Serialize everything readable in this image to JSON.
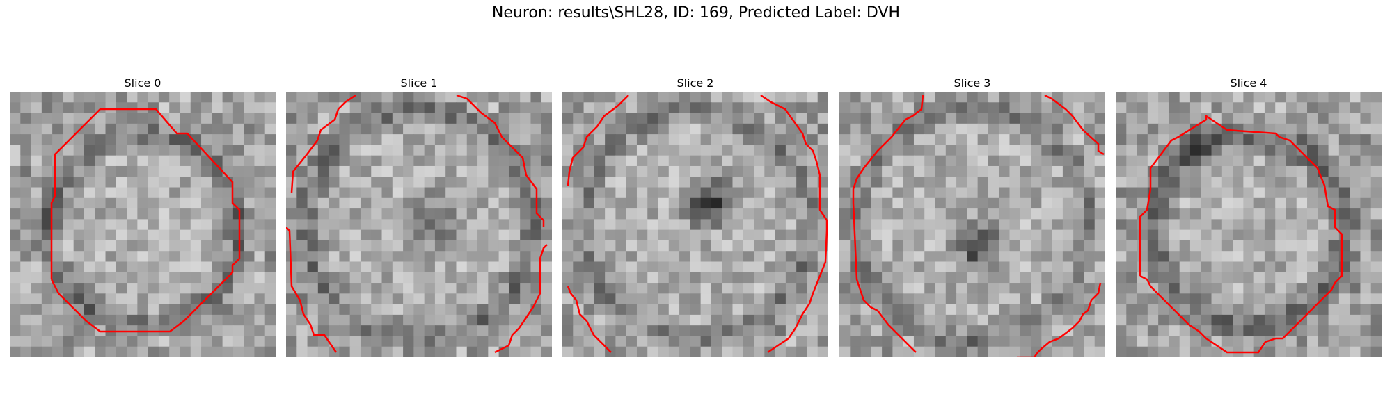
{
  "figure": {
    "title": "Neuron: results\\SHL28, ID: 169, Predicted Label: DVH"
  },
  "panels": [
    {
      "title": "Slice 0",
      "contour": "closed"
    },
    {
      "title": "Slice 1",
      "contour": "partial"
    },
    {
      "title": "Slice 2",
      "contour": "partial"
    },
    {
      "title": "Slice 3",
      "contour": "partial"
    },
    {
      "title": "Slice 4",
      "contour": "closed"
    }
  ],
  "colors": {
    "contour": "#ff0000",
    "background": "#ffffff"
  },
  "image": {
    "colormap": "grayscale",
    "grid": "25x25 pixels per slice"
  }
}
